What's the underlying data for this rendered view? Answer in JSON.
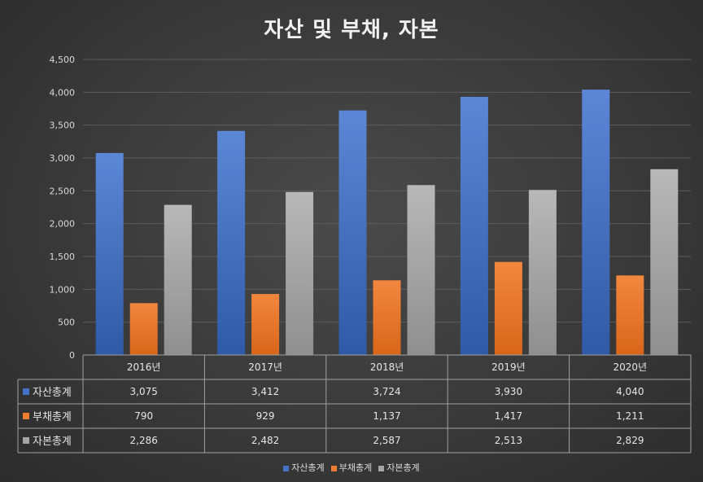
{
  "chart_data": {
    "type": "bar",
    "title": "자산 및 부채, 자본",
    "categories": [
      "2016년",
      "2017년",
      "2018년",
      "2019년",
      "2020년"
    ],
    "series": [
      {
        "name": "자산총계",
        "values": [
          3075,
          3412,
          3724,
          3930,
          4040
        ],
        "labels": [
          "3,075",
          "3,412",
          "3,724",
          "3,930",
          "4,040"
        ],
        "color": "#4472c4"
      },
      {
        "name": "부채총계",
        "values": [
          790,
          929,
          1137,
          1417,
          1211
        ],
        "labels": [
          "790",
          "929",
          "1,137",
          "1,417",
          "1,211"
        ],
        "color": "#ed7d31"
      },
      {
        "name": "자본총계",
        "values": [
          2286,
          2482,
          2587,
          2513,
          2829
        ],
        "labels": [
          "2,286",
          "2,482",
          "2,587",
          "2,513",
          "2,829"
        ],
        "color": "#a5a5a5"
      }
    ],
    "yticks": [
      "0",
      "500",
      "1,000",
      "1,500",
      "2,000",
      "2,500",
      "3,000",
      "3,500",
      "4,000",
      "4,500"
    ],
    "ylim": [
      0,
      4500
    ],
    "grid": true,
    "legend": "bottom",
    "data_table": true
  }
}
